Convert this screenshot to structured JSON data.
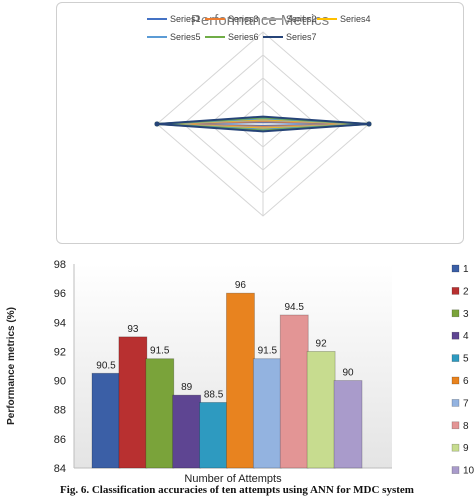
{
  "chart_data": [
    {
      "type": "radar",
      "title": "Performance Metrics",
      "legend_position": "top",
      "series": [
        {
          "name": "Series1",
          "color": "#4472C4"
        },
        {
          "name": "Series3",
          "color": "#ED7D31"
        },
        {
          "name": "Series2",
          "color": "#A5A5A5"
        },
        {
          "name": "Series4",
          "color": "#FFC000"
        },
        {
          "name": "Series5",
          "color": "#5B9BD5"
        },
        {
          "name": "Series6",
          "color": "#70AD47"
        },
        {
          "name": "Series7",
          "color": "#264478"
        }
      ],
      "grid": true
    },
    {
      "type": "bar",
      "categories": [
        "1",
        "2",
        "3",
        "4",
        "5",
        "6",
        "7",
        "8",
        "9",
        "10"
      ],
      "values": [
        90.5,
        93,
        91.5,
        89,
        88.5,
        96,
        91.5,
        94.5,
        92,
        90
      ],
      "colors": [
        "#3b5fa6",
        "#b83030",
        "#7aa33a",
        "#5e4592",
        "#2e9ac0",
        "#e8831f",
        "#93b3e0",
        "#e39595",
        "#c7dc8f",
        "#a99bcb"
      ],
      "xlabel": "Number of Attempts",
      "ylabel": "Performance metrics (%)",
      "ylim": [
        84,
        98
      ],
      "yticks": [
        "84",
        "86",
        "88",
        "90",
        "92",
        "94",
        "96",
        "98"
      ],
      "legend_position": "right",
      "grid": false
    }
  ],
  "caption": "Fig. 6. Classification accuracies of ten attempts using ANN for MDC system"
}
